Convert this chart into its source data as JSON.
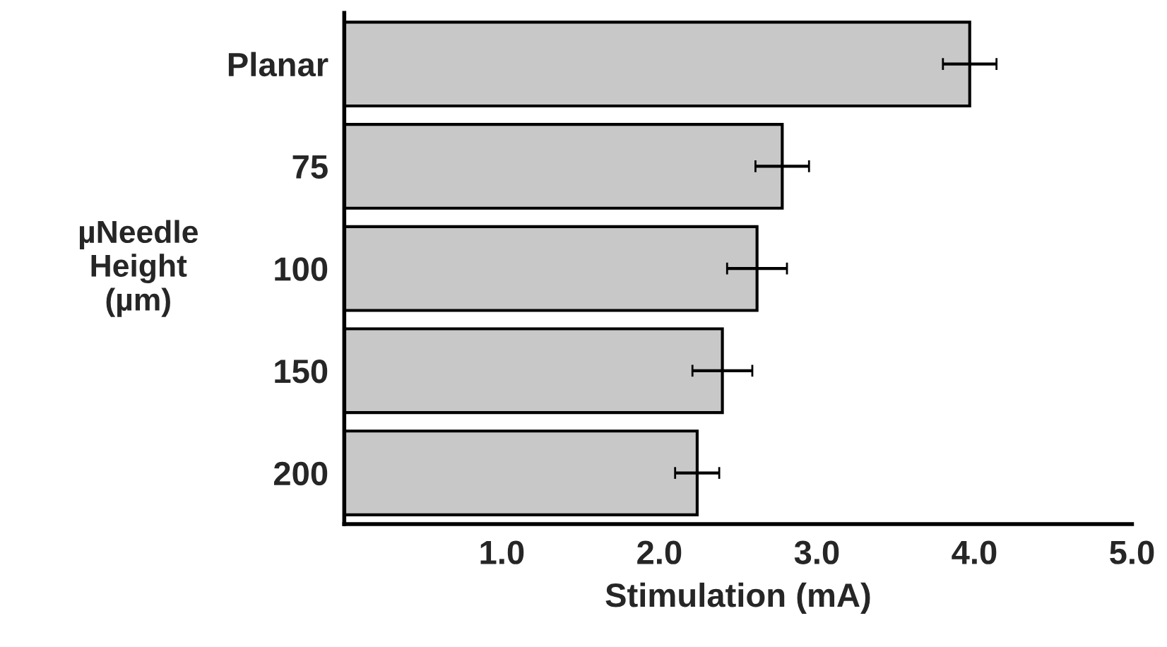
{
  "chart_data": {
    "type": "bar",
    "orientation": "horizontal",
    "xlabel": "Stimulation (mA)",
    "ylabel": "µNeedle\nHeight\n(µm)",
    "categories": [
      "Planar",
      "75",
      "100",
      "150",
      "200"
    ],
    "values": [
      3.97,
      2.78,
      2.62,
      2.4,
      2.24
    ],
    "errors": [
      0.17,
      0.17,
      0.19,
      0.19,
      0.14
    ],
    "color": "#c8c8c8",
    "xlim": [
      0,
      5
    ],
    "xticks": [
      {
        "value": 1,
        "label": "1.0"
      },
      {
        "value": 2,
        "label": "2.0"
      },
      {
        "value": 3,
        "label": "3.0"
      },
      {
        "value": 4,
        "label": "4.0"
      },
      {
        "value": 5,
        "label": "5.0"
      }
    ],
    "grid": false,
    "legend": false
  }
}
